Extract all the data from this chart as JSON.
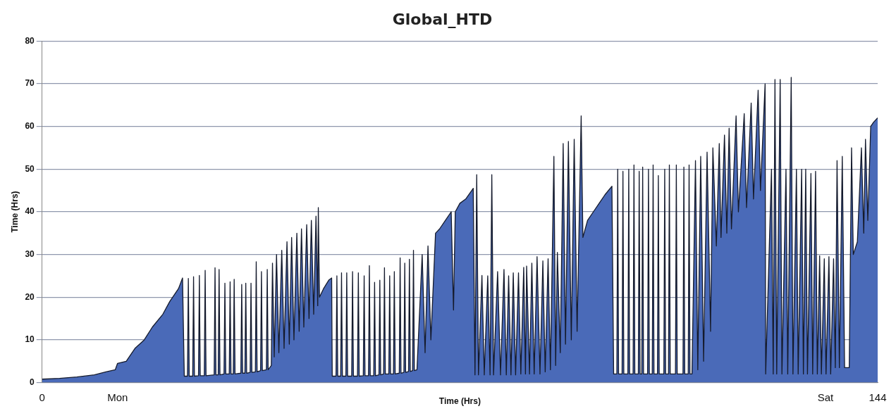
{
  "chart_data": {
    "type": "area",
    "title": "Global_HTD",
    "xlabel": "Time (Hrs)",
    "ylabel": "Time (Hrs)",
    "xlim": [
      0,
      144
    ],
    "xticks": [
      0,
      {
        "value": 13,
        "label": "Mon"
      },
      {
        "value": 135,
        "label": "Sat"
      },
      144
    ],
    "ylim": [
      0,
      80
    ],
    "yticks": [
      0,
      10,
      20,
      30,
      40,
      50,
      60,
      70,
      80
    ],
    "grid": "y",
    "x": [
      0,
      3,
      6,
      9,
      11,
      12.6,
      13,
      14.5,
      16,
      17.6,
      19,
      20.8,
      22,
      23.5,
      24.2,
      24.5,
      25.05,
      25.2,
      25.35,
      25.95,
      26.1,
      26.25,
      26.95,
      27.1,
      27.25,
      27.95,
      28.1,
      28.25,
      29.65,
      29.8,
      29.95,
      30.35,
      30.5,
      30.65,
      31.35,
      31.5,
      31.65,
      32.25,
      32.4,
      32.55,
      32.95,
      33.1,
      33.25,
      34.25,
      34.4,
      34.55,
      34.95,
      35.1,
      35.25,
      35.85,
      36,
      36.15,
      36.75,
      36.9,
      37.05,
      37.65,
      37.8,
      37.95,
      38.65,
      38.8,
      38.95,
      39.5,
      39.7,
      40,
      40.4,
      40.8,
      41.3,
      41.7,
      42.2,
      42.6,
      43,
      43.4,
      43.9,
      44.3,
      44.7,
      45.1,
      45.6,
      46,
      46.4,
      46.8,
      47.2,
      47.5,
      47.6,
      47.8,
      48.5,
      49.4,
      49.9,
      50,
      50.65,
      50.8,
      50.95,
      51.45,
      51.6,
      51.75,
      52.35,
      52.5,
      52.65,
      53.35,
      53.5,
      53.65,
      54.35,
      54.5,
      54.65,
      55.35,
      55.5,
      55.65,
      56.25,
      56.4,
      56.55,
      57.15,
      57.3,
      57.45,
      58.05,
      58.2,
      58.35,
      58.85,
      59,
      59.15,
      59.75,
      59.9,
      60.05,
      60.55,
      60.7,
      60.85,
      61.55,
      61.7,
      61.85,
      62.35,
      62.5,
      62.65,
      63.15,
      63.3,
      63.45,
      63.85,
      64,
      64.15,
      64.6,
      65.5,
      66,
      66.5,
      67,
      67.8,
      68.5,
      69.5,
      70.5,
      70.9,
      71.2,
      72,
      73,
      74.3,
      74.6,
      74.9,
      75.2,
      75.8,
      76.2,
      76.8,
      77.2,
      77.5,
      77.8,
      78.5,
      79,
      79.6,
      80,
      80.4,
      80.8,
      81.2,
      81.6,
      82.1,
      82.5,
      83,
      83.3,
      83.5,
      84,
      84.4,
      84.8,
      85.3,
      85.8,
      86.3,
      86.7,
      87.2,
      87.6,
      88.2,
      88.5,
      88.8,
      89.3,
      89.8,
      90.2,
      90.7,
      91.2,
      91.7,
      92.2,
      92.9,
      93.2,
      94,
      95,
      96,
      97,
      98.2,
      98.5,
      99.05,
      99.2,
      99.35,
      99.95,
      100.1,
      100.25,
      100.95,
      101.1,
      101.25,
      101.85,
      102,
      102.15,
      102.75,
      102.9,
      103.05,
      103.35,
      103.5,
      103.65,
      104.35,
      104.5,
      104.65,
      105.15,
      105.3,
      105.45,
      106.05,
      106.2,
      106.35,
      107.15,
      107.3,
      107.45,
      107.95,
      108.1,
      108.25,
      109.15,
      109.3,
      109.45,
      110.45,
      110.6,
      110.75,
      111.35,
      111.5,
      111.65,
      112,
      112.6,
      113,
      113.5,
      114,
      114.6,
      115.2,
      115.6,
      116.2,
      116.7,
      117,
      117.6,
      118,
      118.4,
      118.8,
      119.6,
      120,
      121,
      121.4,
      122.2,
      122.6,
      123.4,
      123.8,
      124.6,
      124.7,
      125.7,
      126,
      126.3,
      126.6,
      127.2,
      127.5,
      128.2,
      128.5,
      129.1,
      129.4,
      130,
      130.3,
      130.9,
      131.2,
      131.6,
      131.9,
      132.5,
      132.8,
      133.3,
      133.6,
      134,
      134.3,
      134.8,
      135.1,
      135.6,
      135.9,
      136.4,
      136.7,
      137,
      137.4,
      137.9,
      138.3,
      139.1,
      139.5,
      139.8,
      140.5,
      141.2,
      141.6,
      141.9,
      142.3,
      142.8,
      143.3,
      144
    ],
    "series": [
      {
        "color": "#4a6ab8",
        "values": [
          0.8,
          1,
          1.3,
          1.8,
          2.5,
          3,
          4.5,
          5,
          8,
          10,
          13,
          16,
          19,
          22,
          24.5,
          1.5,
          1.5,
          24.4,
          1.5,
          1.5,
          24.8,
          1.5,
          1.6,
          25.1,
          1.6,
          1.6,
          26.3,
          1.6,
          1.8,
          26.9,
          1.8,
          1.8,
          26.5,
          1.8,
          2,
          23.3,
          2,
          2,
          23.6,
          2,
          2,
          24.2,
          2,
          2.2,
          23,
          2.2,
          2.2,
          23.3,
          2.2,
          2.4,
          23.3,
          2.4,
          2.5,
          28.3,
          2.5,
          2.8,
          26,
          2.8,
          3,
          26.5,
          3,
          4,
          28,
          6,
          30,
          7,
          31,
          8,
          33,
          9,
          34,
          10,
          35,
          12,
          36,
          13,
          37,
          15,
          38,
          16,
          39,
          18,
          41,
          20,
          22,
          24,
          24.5,
          1.5,
          1.5,
          25,
          1.5,
          1.5,
          25.7,
          1.5,
          1.5,
          25.7,
          1.5,
          1.5,
          26,
          1.5,
          1.5,
          25.7,
          1.5,
          1.6,
          25,
          1.6,
          1.6,
          27.4,
          1.6,
          1.6,
          23.5,
          1.6,
          1.8,
          24,
          1.8,
          2,
          26.9,
          2,
          2,
          25,
          2,
          2,
          26,
          2,
          2.2,
          29.2,
          2.2,
          2.4,
          28,
          2.4,
          2.6,
          28.9,
          2.6,
          2.8,
          31,
          2.8,
          3,
          30,
          7,
          32,
          10,
          35,
          36,
          38,
          40,
          17,
          40,
          42,
          43,
          45.5,
          1.8,
          48.7,
          1.8,
          25.1,
          1.8,
          25,
          1.8,
          48.7,
          1.8,
          26,
          1.8,
          26.5,
          1.8,
          25,
          1.8,
          25.7,
          1.8,
          25.7,
          2,
          27,
          2,
          27.3,
          2,
          28,
          2,
          29.5,
          2,
          28.5,
          2.5,
          29,
          3,
          53,
          4,
          30.5,
          7,
          56,
          9,
          56.5,
          10,
          57,
          12,
          62.5,
          34,
          38,
          40,
          42,
          44,
          46,
          2,
          2,
          50,
          2,
          2,
          49.5,
          2,
          2,
          50,
          2,
          2,
          51,
          2,
          2,
          49.5,
          2,
          2,
          50.5,
          2,
          2,
          50,
          2,
          2,
          51,
          2,
          2,
          48.5,
          2,
          2,
          50,
          2,
          2,
          51,
          2,
          2,
          51,
          2,
          2,
          50.5,
          2,
          2,
          51,
          2,
          2,
          52,
          3,
          53,
          5,
          54,
          12,
          55,
          32,
          56,
          34,
          58,
          35,
          59.6,
          36,
          62.5,
          40,
          63,
          41,
          65.5,
          43,
          68.5,
          45,
          70,
          2,
          50,
          2,
          71,
          2,
          71,
          2,
          50,
          2,
          71.5,
          2,
          50,
          2,
          50,
          2,
          50,
          2,
          49,
          2,
          49.5,
          2,
          29.7,
          2,
          29,
          2,
          29.5,
          2,
          29,
          3.5,
          52,
          3.5,
          53,
          3.5,
          3.5,
          55,
          30,
          33,
          55,
          35,
          57,
          38,
          60,
          61,
          62
        ]
      }
    ]
  }
}
